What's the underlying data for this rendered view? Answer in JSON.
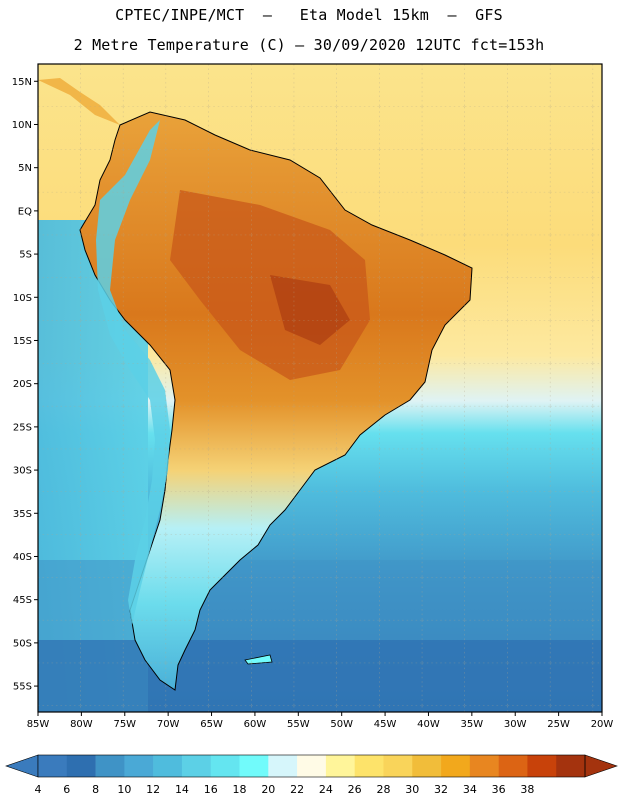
{
  "header": {
    "line1": "CPTEC/INPE/MCT  –   Eta Model 15km  –  GFS",
    "line2": "2 Metre Temperature (C) – 30/09/2020 12UTC fct=153h"
  },
  "map": {
    "lon_range": [
      -85,
      -20
    ],
    "lat_range": [
      -58,
      17
    ],
    "lat_labels": [
      "15N",
      "10N",
      "5N",
      "EQ",
      "5S",
      "10S",
      "15S",
      "20S",
      "25S",
      "30S",
      "35S",
      "40S",
      "45S",
      "50S",
      "55S"
    ],
    "lon_labels": [
      "85W",
      "80W",
      "75W",
      "70W",
      "65W",
      "60W",
      "55W",
      "50W",
      "45W",
      "40W",
      "35W",
      "30W",
      "25W",
      "20W"
    ]
  },
  "colorbar": {
    "labels": [
      "4",
      "6",
      "8",
      "10",
      "12",
      "14",
      "16",
      "18",
      "20",
      "22",
      "24",
      "26",
      "28",
      "30",
      "32",
      "34",
      "36",
      "38"
    ],
    "colors": [
      "#3a7bbd",
      "#2e6fb0",
      "#3f93c6",
      "#4aa9d6",
      "#4fbcdd",
      "#5cd0e6",
      "#64e5f0",
      "#71fbfb",
      "#d6f6fb",
      "#fffbe6",
      "#fff59a",
      "#fde36a",
      "#f9d45a",
      "#f1bd3a",
      "#f2a81c",
      "#e88620",
      "#dc6414",
      "#c8420a",
      "#a4330e"
    ],
    "left_arrow_color": "#3a7bbd",
    "right_arrow_color": "#a4330e"
  }
}
